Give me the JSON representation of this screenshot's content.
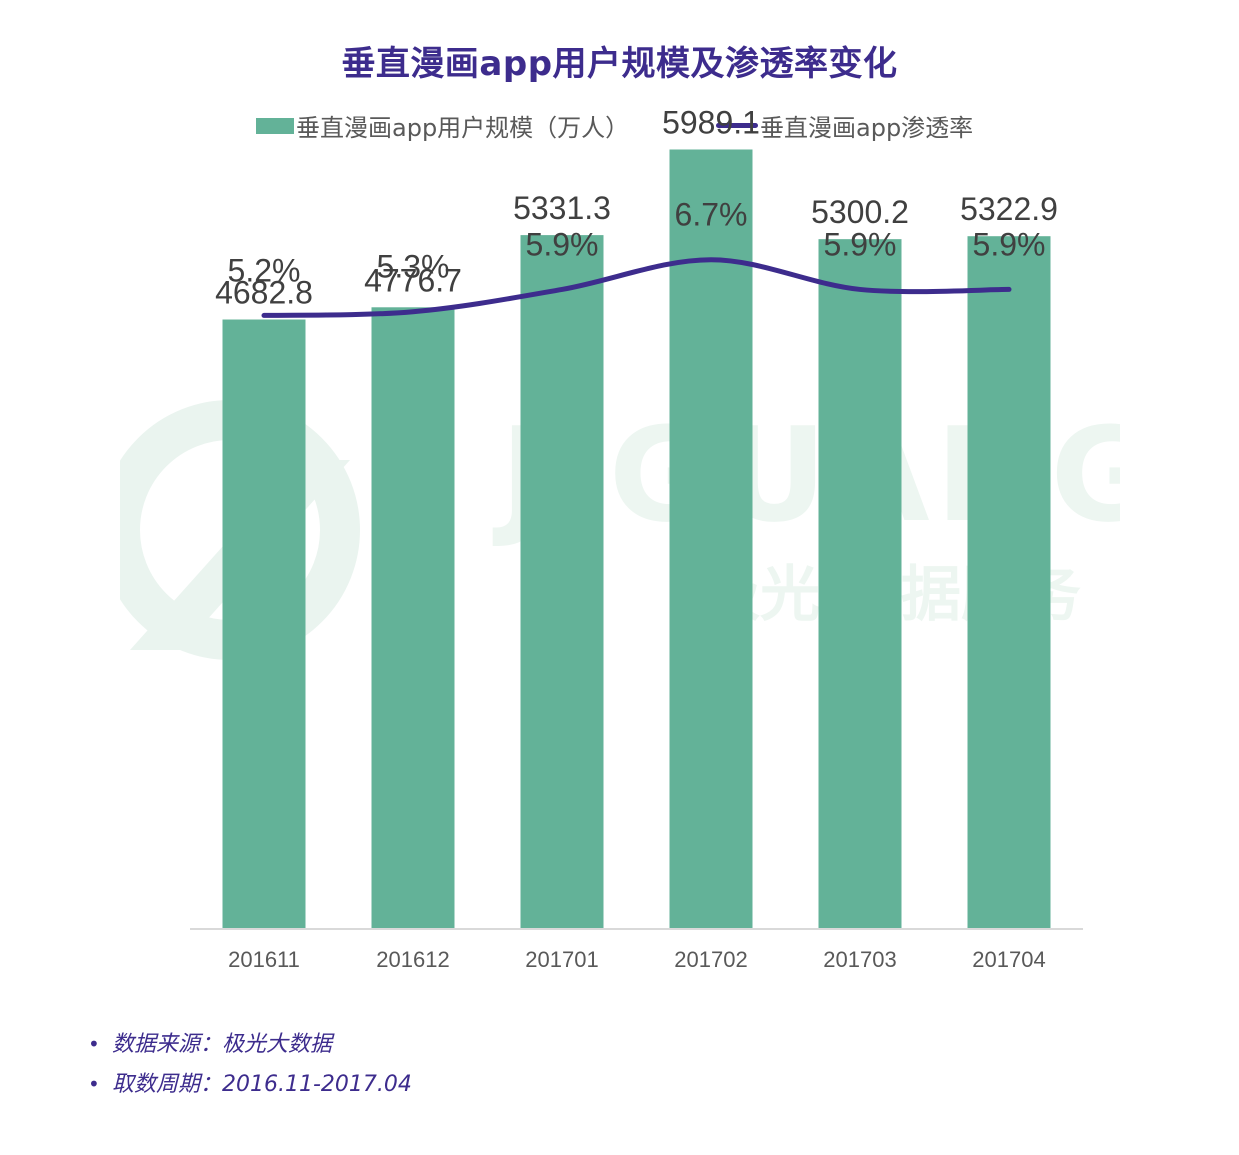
{
  "chart_data": {
    "type": "bar+line",
    "title": "垂直漫画app用户规模及渗透率变化",
    "categories": [
      "201611",
      "201612",
      "201701",
      "201702",
      "201703",
      "201704"
    ],
    "series": [
      {
        "name": "垂直漫画app用户规模（万人）",
        "type": "bar",
        "values": [
          4682.8,
          4776.7,
          5331.3,
          5989.1,
          5300.2,
          5322.9
        ],
        "labels": [
          "4682.8",
          "4776.7",
          "5331.3",
          "5989.1",
          "5300.2",
          "5322.9"
        ],
        "color": "#63b298"
      },
      {
        "name": "垂直漫画app渗透率",
        "type": "line",
        "values": [
          5.2,
          5.3,
          5.9,
          6.7,
          5.9,
          5.9
        ],
        "labels": [
          "5.2%",
          "5.3%",
          "5.9%",
          "6.7%",
          "5.9%",
          "5.9%"
        ],
        "color": "#3d2c8d",
        "smooth": true
      }
    ],
    "ylim": [
      0,
      6500
    ],
    "grid": false,
    "legend_position": "top"
  },
  "watermark": {
    "latin": "JIGUANG",
    "cjk": "极光 数据服务",
    "color": "#e8f3ee"
  },
  "notes": [
    {
      "bullet": "•",
      "text": "数据来源：极光大数据"
    },
    {
      "bullet": "•",
      "text": "取数周期：2016.11-2017.04"
    }
  ]
}
